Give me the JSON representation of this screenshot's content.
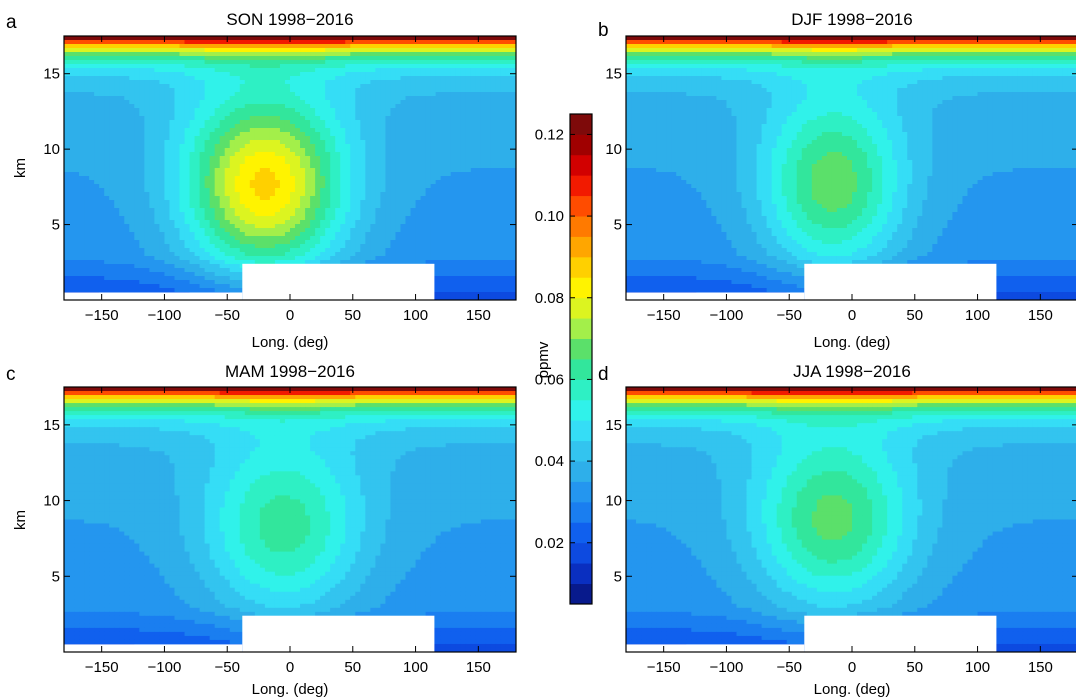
{
  "chart_data": [
    {
      "type": "contour",
      "panel_letter": "a",
      "title": "SON 1998−2016",
      "xlabel": "Long. (deg)",
      "ylabel": "km",
      "xlim": [
        -180,
        180
      ],
      "ylim": [
        0,
        17.5
      ],
      "xticks": [
        -150,
        -100,
        -50,
        0,
        50,
        100,
        150
      ],
      "xtick_labels": [
        "−150",
        "−100",
        "−50",
        "0",
        "50",
        "100",
        "150"
      ],
      "yticks": [
        5,
        10,
        15
      ],
      "ytick_labels": [
        "5",
        "10",
        "15"
      ],
      "center_lon": -20,
      "center_value": 0.085,
      "peak_value": 0.082,
      "peak_alt": 7.5,
      "core_halfwidth_deg": 45
    },
    {
      "type": "contour",
      "panel_letter": "b",
      "title": "DJF 1998−2016",
      "xlabel": "Long. (deg)",
      "ylabel": "",
      "xlim": [
        -180,
        180
      ],
      "ylim": [
        0,
        17.5
      ],
      "xticks": [
        -150,
        -100,
        -50,
        0,
        50,
        100,
        150
      ],
      "xtick_labels": [
        "−150",
        "−100",
        "−50",
        "0",
        "50",
        "100",
        "150"
      ],
      "yticks": [
        5,
        10,
        15
      ],
      "ytick_labels": [
        "5",
        "10",
        "15"
      ],
      "center_lon": -15,
      "center_value": 0.063,
      "peak_value": 0.064,
      "peak_alt": 7.5,
      "core_halfwidth_deg": 40
    },
    {
      "type": "contour",
      "panel_letter": "c",
      "title": "MAM 1998−2016",
      "xlabel": "Long. (deg)",
      "ylabel": "km",
      "xlim": [
        -180,
        180
      ],
      "ylim": [
        0,
        17.5
      ],
      "xticks": [
        -150,
        -100,
        -50,
        0,
        50,
        100,
        150
      ],
      "xtick_labels": [
        "−150",
        "−100",
        "−50",
        "0",
        "50",
        "100",
        "150"
      ],
      "yticks": [
        5,
        10,
        15
      ],
      "ytick_labels": [
        "5",
        "10",
        "15"
      ],
      "center_lon": -5,
      "center_value": 0.054,
      "peak_value": 0.058,
      "peak_alt": 8,
      "core_halfwidth_deg": 45
    },
    {
      "type": "contour",
      "panel_letter": "d",
      "title": "JJA 1998−2016",
      "xlabel": "Long. (deg)",
      "ylabel": "",
      "xlim": [
        -180,
        180
      ],
      "ylim": [
        0,
        17.5
      ],
      "xticks": [
        -150,
        -100,
        -50,
        0,
        50,
        100,
        150
      ],
      "xtick_labels": [
        "−150",
        "−100",
        "−50",
        "0",
        "50",
        "100",
        "150"
      ],
      "yticks": [
        5,
        10,
        15
      ],
      "ytick_labels": [
        "5",
        "10",
        "15"
      ],
      "center_lon": -15,
      "center_value": 0.062,
      "peak_value": 0.062,
      "peak_alt": 8.5,
      "core_halfwidth_deg": 45
    }
  ],
  "colorbar": {
    "label": "ppmv",
    "min": 0.005,
    "max": 0.125,
    "step": 0.005,
    "ticks": [
      0.02,
      0.04,
      0.06,
      0.08,
      0.1,
      0.12
    ],
    "tick_labels": [
      "0.02",
      "0.04",
      "0.06",
      "0.08",
      "0.10",
      "0.12"
    ],
    "colors": [
      "#081a8c",
      "#0a2fc0",
      "#0d4ae0",
      "#1060ee",
      "#1a7ef0",
      "#2496ef",
      "#2eafea",
      "#33c4ef",
      "#35ddf6",
      "#30f2ea",
      "#2ef0c4",
      "#32e69c",
      "#5be06a",
      "#a3ef4a",
      "#dcf420",
      "#fff300",
      "#ffd000",
      "#ffa600",
      "#ff7a00",
      "#ff4c00",
      "#f21a00",
      "#d20000",
      "#a00000",
      "#7e0a0a"
    ]
  }
}
